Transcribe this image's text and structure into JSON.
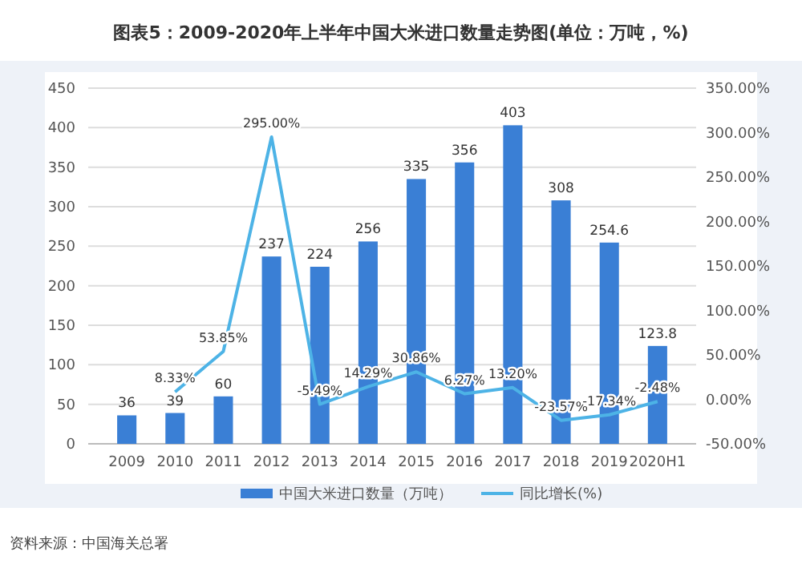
{
  "chart_data": {
    "type": "bar",
    "title": "图表5：2009-2020年上半年中国大米进口数量走势图(单位：万吨，%)",
    "categories": [
      "2009",
      "2010",
      "2011",
      "2012",
      "2013",
      "2014",
      "2015",
      "2016",
      "2017",
      "2018",
      "2019",
      "2020H1"
    ],
    "series": [
      {
        "name": "中国大米进口数量（万吨）",
        "color": "#3a7fd5",
        "values": [
          36,
          39,
          60,
          237,
          224,
          256,
          335,
          356,
          403,
          308,
          254.6,
          123.8
        ]
      },
      {
        "name": "同比增长(%)",
        "color": "#4db3e6",
        "type": "line",
        "axis": "y2",
        "values": [
          null,
          8.33,
          53.85,
          295,
          -5.49,
          14.29,
          30.86,
          6.27,
          13.2,
          -23.57,
          -17.34,
          -2.48
        ],
        "value_labels": [
          null,
          "8.33%",
          "53.85%",
          "295.00%",
          "-5.49%",
          "14.29%",
          "30.86%",
          "6.27%",
          "13.20%",
          "-23.57%",
          "-17.34%",
          "-2.48%"
        ]
      }
    ],
    "data_labels": true,
    "ylim": [
      0,
      450
    ],
    "yticks": [
      0,
      50,
      100,
      150,
      200,
      250,
      300,
      350,
      400,
      450
    ],
    "y2lim": [
      -50,
      350
    ],
    "y2ticks": [
      {
        "value": -50,
        "label": "-50.00%"
      },
      {
        "value": 0,
        "label": "0.00%"
      },
      {
        "value": 50,
        "label": "50.00%"
      },
      {
        "value": 100,
        "label": "100.00%"
      },
      {
        "value": 150,
        "label": "150.00%"
      },
      {
        "value": 200,
        "label": "200.00%"
      },
      {
        "value": 250,
        "label": "250.00%"
      },
      {
        "value": 300,
        "label": "300.00%"
      },
      {
        "value": 350,
        "label": "350.00%"
      }
    ],
    "grid": "y",
    "legend": "bottom",
    "marker": "none",
    "line_style": "solid",
    "annotations": [
      "资料来源：中国海关总署"
    ]
  }
}
